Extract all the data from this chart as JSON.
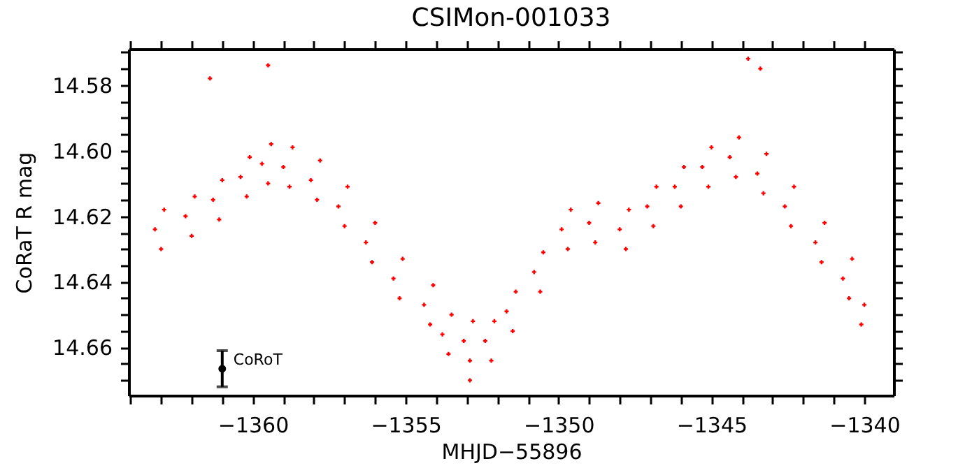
{
  "chart_data": {
    "type": "scatter",
    "title": "CSIMon-001033",
    "xlabel": "MHJD−55896",
    "ylabel": "CoRaT R mag",
    "xlim": [
      -1364.06,
      -1339.04
    ],
    "ylim": [
      14.6746,
      14.569
    ],
    "xticks": [
      {
        "value": -1364,
        "label": null
      },
      {
        "value": -1363,
        "label": null
      },
      {
        "value": -1362,
        "label": null
      },
      {
        "value": -1361,
        "label": null
      },
      {
        "value": -1360,
        "label": "−1360"
      },
      {
        "value": -1359,
        "label": null
      },
      {
        "value": -1358,
        "label": null
      },
      {
        "value": -1357,
        "label": null
      },
      {
        "value": -1356,
        "label": null
      },
      {
        "value": -1355,
        "label": "−1355"
      },
      {
        "value": -1354,
        "label": null
      },
      {
        "value": -1353,
        "label": null
      },
      {
        "value": -1352,
        "label": null
      },
      {
        "value": -1351,
        "label": null
      },
      {
        "value": -1350,
        "label": "−1350"
      },
      {
        "value": -1349,
        "label": null
      },
      {
        "value": -1348,
        "label": null
      },
      {
        "value": -1347,
        "label": null
      },
      {
        "value": -1346,
        "label": null
      },
      {
        "value": -1345,
        "label": "−1345"
      },
      {
        "value": -1344,
        "label": null
      },
      {
        "value": -1343,
        "label": null
      },
      {
        "value": -1342,
        "label": null
      },
      {
        "value": -1341,
        "label": null
      },
      {
        "value": -1340,
        "label": "−1340"
      }
    ],
    "yticks": [
      {
        "value": 14.57,
        "label": null
      },
      {
        "value": 14.575,
        "label": null
      },
      14.58,
      {
        "value": 14.585,
        "label": null
      },
      {
        "value": 14.59,
        "label": null
      },
      {
        "value": 14.595,
        "label": null
      },
      {
        "value": 14.6,
        "label": "14.60"
      },
      {
        "value": 14.605,
        "label": null
      },
      {
        "value": 14.61,
        "label": null
      },
      {
        "value": 14.615,
        "label": null
      },
      14.62,
      {
        "value": 14.625,
        "label": null
      },
      14.64,
      {
        "value": 14.63,
        "label": null
      },
      {
        "value": 14.635,
        "label": null
      },
      {
        "value": 14.645,
        "label": null
      },
      {
        "value": 14.65,
        "label": null
      },
      {
        "value": 14.655,
        "label": null
      },
      14.66,
      {
        "value": 14.665,
        "label": null
      },
      {
        "value": 14.67,
        "label": null
      }
    ],
    "grid": false,
    "marker": "cross",
    "series": [
      {
        "color": "#ff0000",
        "x": [
          -1363.2,
          -1362.9,
          -1363.0,
          -1362.2,
          -1361.9,
          -1362.0,
          -1361.3,
          -1361.0,
          -1361.1,
          -1360.4,
          -1360.1,
          -1360.2,
          -1359.7,
          -1359.4,
          -1359.5,
          -1359.0,
          -1358.7,
          -1358.8,
          -1358.1,
          -1357.8,
          -1357.9,
          -1357.2,
          -1356.9,
          -1357.0,
          -1356.3,
          -1356.0,
          -1356.1,
          -1355.4,
          -1355.1,
          -1355.2,
          -1354.4,
          -1354.1,
          -1354.2,
          -1353.8,
          -1353.5,
          -1353.6,
          -1353.1,
          -1352.8,
          -1352.9,
          -1352.4,
          -1352.1,
          -1352.2,
          -1351.7,
          -1351.4,
          -1351.5,
          -1350.8,
          -1350.5,
          -1350.6,
          -1349.9,
          -1349.6,
          -1349.7,
          -1349.0,
          -1348.7,
          -1348.8,
          -1348.0,
          -1347.7,
          -1347.8,
          -1347.1,
          -1346.8,
          -1346.9,
          -1346.2,
          -1345.9,
          -1346.0,
          -1345.3,
          -1345.0,
          -1345.1,
          -1344.4,
          -1344.1,
          -1344.2,
          -1343.5,
          -1343.2,
          -1343.3,
          -1342.6,
          -1342.3,
          -1342.4,
          -1341.6,
          -1341.3,
          -1341.4,
          -1340.7,
          -1340.4,
          -1340.5,
          -1340.1,
          -1340.0,
          -1361.4,
          -1359.5,
          -1343.8,
          -1343.4,
          -1352.9
        ],
        "values": [
          14.624,
          14.618,
          14.63,
          14.62,
          14.614,
          14.626,
          14.615,
          14.609,
          14.621,
          14.608,
          14.602,
          14.614,
          14.604,
          14.598,
          14.61,
          14.605,
          14.599,
          14.611,
          14.609,
          14.603,
          14.615,
          14.617,
          14.611,
          14.623,
          14.628,
          14.622,
          14.634,
          14.639,
          14.633,
          14.645,
          14.647,
          14.641,
          14.653,
          14.656,
          14.65,
          14.662,
          14.658,
          14.652,
          14.664,
          14.658,
          14.652,
          14.664,
          14.649,
          14.643,
          14.655,
          14.637,
          14.631,
          14.643,
          14.624,
          14.618,
          14.63,
          14.622,
          14.616,
          14.628,
          14.624,
          14.618,
          14.63,
          14.617,
          14.611,
          14.623,
          14.611,
          14.605,
          14.617,
          14.605,
          14.599,
          14.611,
          14.602,
          14.596,
          14.608,
          14.607,
          14.601,
          14.613,
          14.617,
          14.611,
          14.623,
          14.628,
          14.622,
          14.634,
          14.639,
          14.633,
          14.645,
          14.653,
          14.647,
          14.578,
          14.574,
          14.572,
          14.575,
          14.67
        ]
      },
      {
        "name": "CoRoT",
        "color": "#000000",
        "marker": "circle",
        "x": [
          -1361.0
        ],
        "values": [
          14.6665
        ],
        "errors": [
          0.0055
        ]
      }
    ]
  }
}
